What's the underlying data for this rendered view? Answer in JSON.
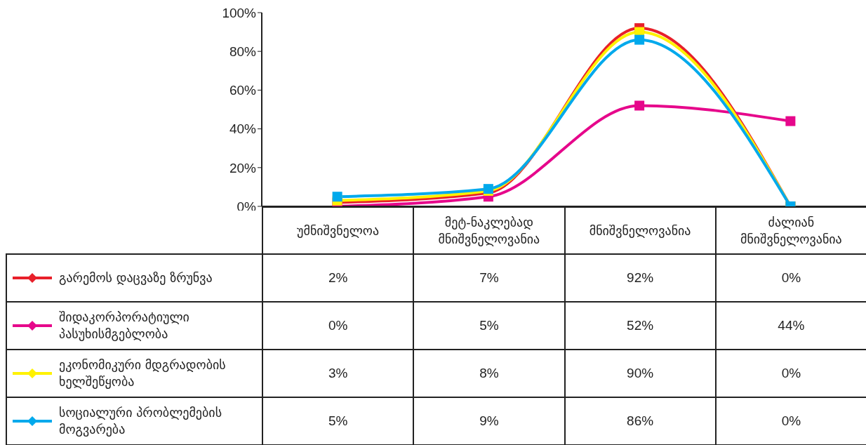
{
  "chart_data": {
    "type": "line",
    "categories": [
      "უმნიშვნელოა",
      "მეტ-ნაკლებად მნიშვნელოვანია",
      "მნიშვნელოვანია",
      "ძალიან მნიშვნელოვანია"
    ],
    "series": [
      {
        "name": "გარემოს დაცვაზე ზრუნვა",
        "color": "#e8202a",
        "values": [
          2,
          7,
          92,
          0
        ],
        "value_labels": [
          "2%",
          "7%",
          "92%",
          "0%"
        ]
      },
      {
        "name": "შიდაკორპორატიული პასუხისმგებლობა",
        "color": "#e6078b",
        "values": [
          0,
          5,
          52,
          44
        ],
        "value_labels": [
          "0%",
          "5%",
          "52%",
          "44%"
        ]
      },
      {
        "name": "ეკონომიკური მდგრადობის ხელშეწყობა",
        "color": "#fff200",
        "values": [
          3,
          8,
          90,
          0
        ],
        "value_labels": [
          "3%",
          "8%",
          "90%",
          "0%"
        ]
      },
      {
        "name": "სოციალური პრობლემების მოგვარება",
        "color": "#00a9ec",
        "values": [
          5,
          9,
          86,
          0
        ],
        "value_labels": [
          "5%",
          "9%",
          "86%",
          "0%"
        ]
      }
    ],
    "ylim": [
      0,
      100
    ],
    "yticks": [
      {
        "value": 0,
        "label": "0%"
      },
      {
        "value": 20,
        "label": "20%"
      },
      {
        "value": 40,
        "label": "40%"
      },
      {
        "value": 60,
        "label": "60%"
      },
      {
        "value": 80,
        "label": "80%"
      },
      {
        "value": 100,
        "label": "100%"
      }
    ],
    "grid": false,
    "legend": "bottom left",
    "marker": "square",
    "line_style": "solid"
  }
}
